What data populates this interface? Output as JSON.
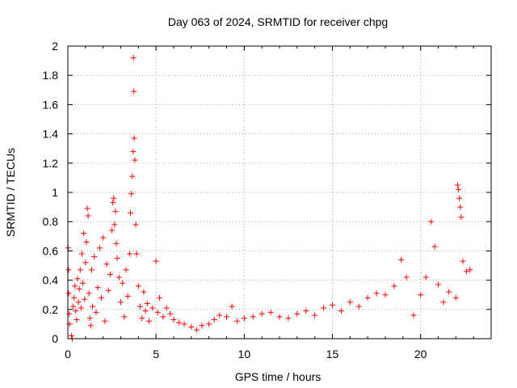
{
  "chart_data": {
    "type": "scatter",
    "title": "Day 063 of 2024, SRMTID for receiver chpg",
    "xlabel": "GPS time / hours",
    "ylabel": "SRMTID / TECUs",
    "xlim": [
      0,
      24
    ],
    "ylim": [
      0,
      2
    ],
    "xticks": [
      0,
      5,
      10,
      15,
      20
    ],
    "yticks": [
      0,
      0.2,
      0.4,
      0.6,
      0.8,
      1,
      1.2,
      1.4,
      1.6,
      1.8,
      2
    ],
    "ytick_labels": [
      "0",
      "0.2",
      "0.4",
      "0.6",
      "0.8",
      "1",
      "1.2",
      "1.4",
      "1.6",
      "1.8",
      "2"
    ],
    "grid": true,
    "marker": "+",
    "color": "#ff0000",
    "series": [
      {
        "name": "SRMTID",
        "points": [
          [
            0.02,
            0.62
          ],
          [
            0.04,
            0.47
          ],
          [
            0.05,
            0.31
          ],
          [
            0.08,
            0.17
          ],
          [
            0.1,
            0.1
          ],
          [
            0.2,
            0.02
          ],
          [
            0.25,
            0.0
          ],
          [
            0.3,
            0.22
          ],
          [
            0.35,
            0.28
          ],
          [
            0.4,
            0.36
          ],
          [
            0.45,
            0.19
          ],
          [
            0.5,
            0.13
          ],
          [
            0.55,
            0.41
          ],
          [
            0.6,
            0.25
          ],
          [
            0.65,
            0.34
          ],
          [
            0.7,
            0.47
          ],
          [
            0.75,
            0.21
          ],
          [
            0.8,
            0.58
          ],
          [
            0.85,
            0.38
          ],
          [
            0.9,
            0.72
          ],
          [
            0.95,
            0.27
          ],
          [
            1.0,
            0.52
          ],
          [
            1.05,
            0.66
          ],
          [
            1.1,
            0.89
          ],
          [
            1.15,
            0.84
          ],
          [
            1.2,
            0.31
          ],
          [
            1.25,
            0.14
          ],
          [
            1.3,
            0.09
          ],
          [
            1.35,
            0.47
          ],
          [
            1.4,
            0.22
          ],
          [
            1.5,
            0.56
          ],
          [
            1.6,
            0.18
          ],
          [
            1.7,
            0.35
          ],
          [
            1.8,
            0.62
          ],
          [
            1.9,
            0.28
          ],
          [
            2.0,
            0.69
          ],
          [
            2.1,
            0.12
          ],
          [
            2.2,
            0.51
          ],
          [
            2.3,
            0.33
          ],
          [
            2.4,
            0.44
          ],
          [
            2.5,
            0.74
          ],
          [
            2.55,
            0.93
          ],
          [
            2.6,
            0.96
          ],
          [
            2.65,
            0.78
          ],
          [
            2.7,
            0.87
          ],
          [
            2.75,
            0.65
          ],
          [
            2.8,
            0.55
          ],
          [
            2.9,
            0.42
          ],
          [
            3.0,
            0.25
          ],
          [
            3.1,
            0.38
          ],
          [
            3.2,
            0.15
          ],
          [
            3.3,
            0.47
          ],
          [
            3.4,
            0.29
          ],
          [
            3.5,
            0.58
          ],
          [
            3.55,
            0.86
          ],
          [
            3.6,
            0.99
          ],
          [
            3.65,
            1.11
          ],
          [
            3.7,
            1.28
          ],
          [
            3.72,
            1.92
          ],
          [
            3.74,
            1.69
          ],
          [
            3.76,
            1.37
          ],
          [
            3.8,
            1.22
          ],
          [
            3.85,
            0.78
          ],
          [
            3.9,
            0.58
          ],
          [
            4.0,
            0.36
          ],
          [
            4.1,
            0.22
          ],
          [
            4.2,
            0.14
          ],
          [
            4.3,
            0.32
          ],
          [
            4.4,
            0.19
          ],
          [
            4.5,
            0.24
          ],
          [
            4.6,
            0.12
          ],
          [
            4.8,
            0.21
          ],
          [
            5.0,
            0.53
          ],
          [
            5.1,
            0.18
          ],
          [
            5.2,
            0.28
          ],
          [
            5.4,
            0.15
          ],
          [
            5.6,
            0.21
          ],
          [
            5.8,
            0.17
          ],
          [
            6.0,
            0.13
          ],
          [
            6.3,
            0.11
          ],
          [
            6.6,
            0.1
          ],
          [
            7.0,
            0.08
          ],
          [
            7.3,
            0.06
          ],
          [
            7.6,
            0.09
          ],
          [
            8.0,
            0.1
          ],
          [
            8.3,
            0.13
          ],
          [
            8.6,
            0.16
          ],
          [
            9.0,
            0.15
          ],
          [
            9.3,
            0.22
          ],
          [
            9.6,
            0.12
          ],
          [
            10.0,
            0.14
          ],
          [
            10.5,
            0.15
          ],
          [
            11.0,
            0.17
          ],
          [
            11.5,
            0.18
          ],
          [
            12.0,
            0.15
          ],
          [
            12.5,
            0.14
          ],
          [
            13.0,
            0.17
          ],
          [
            13.5,
            0.19
          ],
          [
            14.0,
            0.16
          ],
          [
            14.5,
            0.21
          ],
          [
            15.0,
            0.23
          ],
          [
            15.5,
            0.19
          ],
          [
            16.0,
            0.25
          ],
          [
            16.5,
            0.22
          ],
          [
            17.0,
            0.28
          ],
          [
            17.5,
            0.31
          ],
          [
            18.0,
            0.3
          ],
          [
            18.5,
            0.36
          ],
          [
            18.9,
            0.54
          ],
          [
            19.2,
            0.42
          ],
          [
            19.6,
            0.16
          ],
          [
            20.0,
            0.3
          ],
          [
            20.3,
            0.42
          ],
          [
            20.6,
            0.8
          ],
          [
            20.8,
            0.63
          ],
          [
            21.0,
            0.37
          ],
          [
            21.3,
            0.25
          ],
          [
            21.6,
            0.32
          ],
          [
            22.0,
            0.28
          ],
          [
            22.1,
            1.05
          ],
          [
            22.15,
            1.02
          ],
          [
            22.2,
            0.96
          ],
          [
            22.25,
            0.9
          ],
          [
            22.3,
            0.83
          ],
          [
            22.4,
            0.53
          ],
          [
            22.6,
            0.46
          ],
          [
            22.8,
            0.47
          ]
        ]
      }
    ]
  }
}
